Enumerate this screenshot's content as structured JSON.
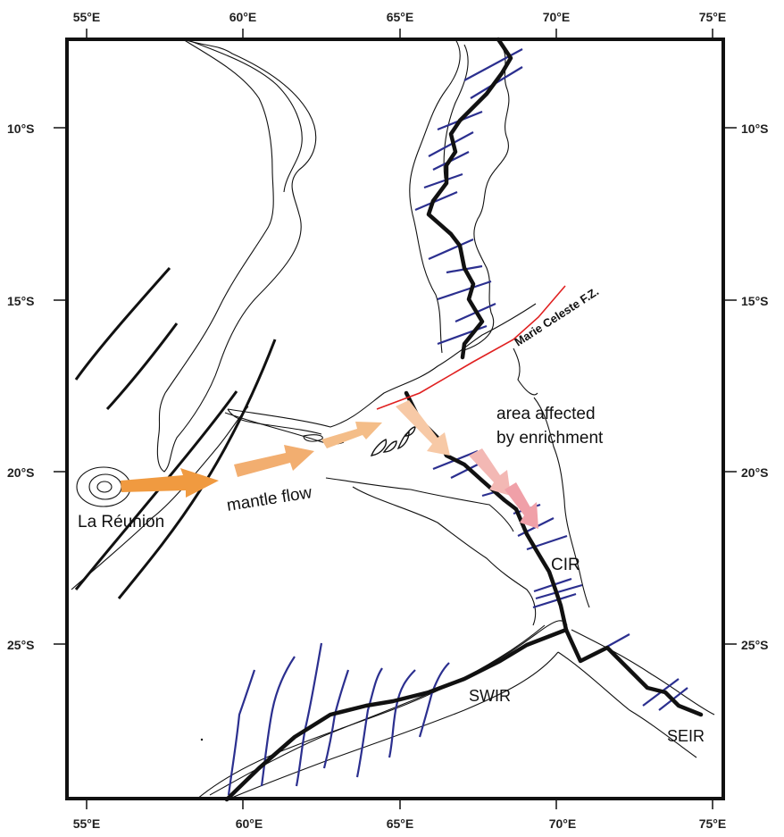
{
  "map": {
    "lon_ticks": [
      "55°E",
      "60°E",
      "65°E",
      "70°E",
      "75°E"
    ],
    "lat_ticks": [
      "10°S",
      "15°S",
      "20°S",
      "25°S"
    ],
    "labels": {
      "reunion": "La Réunion",
      "mantle_flow": "mantle flow",
      "area_line1": "area affected",
      "area_line2": "by enrichment",
      "marie_celeste": "Marie Celeste F.Z.",
      "cir": "CIR",
      "swir": "SWIR",
      "seir": "SEIR"
    },
    "colors": {
      "ridge_axis": "#111111",
      "fracture_zones": "#2b2f8f",
      "marie_celeste_fz": "#e02020",
      "flow_arrow": "#f0a050",
      "enrichment_arrow": "#f2b8b8",
      "bathymetry": "#111111"
    }
  }
}
